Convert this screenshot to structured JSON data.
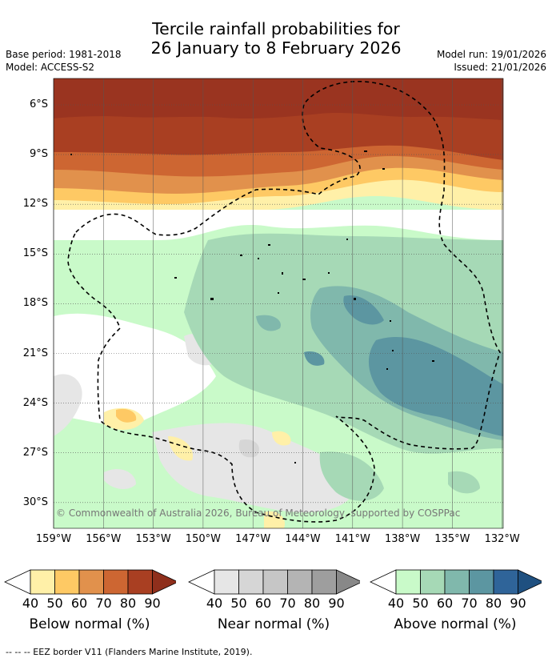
{
  "title": {
    "line1": "Tercile rainfall probabilities for",
    "line2": "26 January to 8 February 2026"
  },
  "meta": {
    "base_period": "Base period: 1981-2018",
    "model": "Model: ACCESS-S2",
    "model_run": "Model run: 19/01/2026",
    "issued": "Issued: 21/01/2026"
  },
  "map": {
    "lat_labels": [
      "6°S",
      "9°S",
      "12°S",
      "15°S",
      "18°S",
      "21°S",
      "24°S",
      "27°S",
      "30°S"
    ],
    "lon_labels": [
      "159°W",
      "156°W",
      "153°W",
      "150°W",
      "147°W",
      "144°W",
      "141°W",
      "138°W",
      "135°W",
      "132°W"
    ],
    "copyright": "© Commonwealth of Australia 2026, Bureau of Meteorology, supported by COSPPac"
  },
  "legends": [
    {
      "title": "Below normal (%)",
      "ticks": [
        "40",
        "50",
        "60",
        "70",
        "80",
        "90"
      ],
      "colors": [
        "#fff0a8",
        "#fec964",
        "#e1914c",
        "#cd6632",
        "#a93f22",
        "#8f2f1c"
      ]
    },
    {
      "title": "Near normal (%)",
      "ticks": [
        "40",
        "50",
        "60",
        "70",
        "80",
        "90"
      ],
      "colors": [
        "#e6e6e6",
        "#d6d6d6",
        "#c6c6c6",
        "#b4b4b4",
        "#9e9e9e",
        "#888888"
      ]
    },
    {
      "title": "Above normal (%)",
      "ticks": [
        "40",
        "50",
        "60",
        "70",
        "80",
        "90"
      ],
      "colors": [
        "#c9fac9",
        "#a6d9b6",
        "#80b8ac",
        "#5c96a1",
        "#2f6499",
        "#1f5080"
      ]
    }
  ],
  "footer": {
    "eez_note": "--  --  -- EEZ border V11 (Flanders Marine Institute, 2019)."
  }
}
